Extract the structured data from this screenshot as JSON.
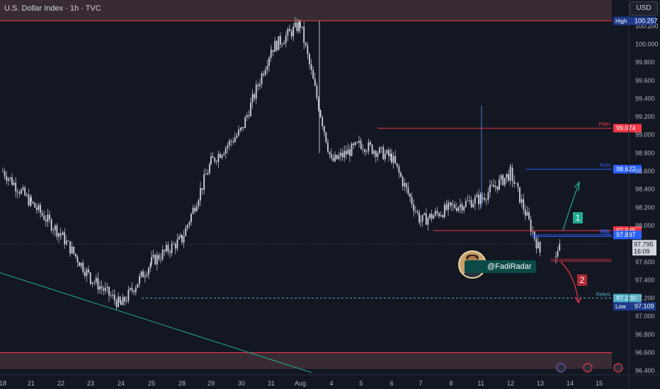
{
  "header": {
    "title": "U.S. Dollar Index · 1h · TVC",
    "currency_button": "USD"
  },
  "axis_labels": {
    "high_label": "High",
    "high_value": "100.257",
    "low_label": "Low",
    "low_value": "97.109",
    "last_price": "97.795",
    "countdown": "16:09"
  },
  "levels": [
    {
      "tag": "PWH",
      "value": 99.074,
      "label": "99.074",
      "color": "#f23645"
    },
    {
      "tag": "PDH",
      "value": 98.622,
      "label": "98.622",
      "color": "#2962ff"
    },
    {
      "tag": "",
      "value": 97.945,
      "label": "97.945",
      "color": "#f23645"
    },
    {
      "tag": "PWL",
      "value": 97.897,
      "label": "97.897",
      "color": "#2962ff"
    },
    {
      "tag": "PDL",
      "value": 97.88,
      "label": "",
      "color": "#2962ff"
    },
    {
      "tag": "Retest",
      "value": 97.2,
      "label": "97.200",
      "color": "#4fb0c6"
    }
  ],
  "annotations": {
    "handle": "@FadiRadar",
    "scenario_up": "1",
    "scenario_down": "2"
  },
  "colors": {
    "background": "#131722",
    "candles": "#d1d4dc",
    "up_arrow": "#22ab94",
    "down_arrow": "#f23645",
    "zone": "#5a3c44"
  },
  "chart_data": {
    "type": "candlestick",
    "title": "U.S. Dollar Index · 1h · TVC",
    "y_ticks": [
      "100.200",
      "100.000",
      "99.800",
      "99.600",
      "99.400",
      "99.200",
      "99.000",
      "98.800",
      "98.600",
      "98.400",
      "98.200",
      "98.000",
      "97.800",
      "97.600",
      "97.400",
      "97.200",
      "97.000",
      "96.800",
      "96.600",
      "96.400"
    ],
    "x_ticks": [
      "18",
      "21",
      "22",
      "23",
      "24",
      "25",
      "28",
      "29",
      "30",
      "31",
      "Aug",
      "4",
      "5",
      "6",
      "7",
      "8",
      "11",
      "12",
      "13",
      "14",
      "15"
    ],
    "ylim": [
      96.37,
      100.3
    ],
    "path": [
      {
        "d": "18",
        "v": 98.6
      },
      {
        "d": "21",
        "v": 98.25
      },
      {
        "d": "22",
        "v": 97.9
      },
      {
        "d": "23",
        "v": 97.42
      },
      {
        "d": "24",
        "v": 97.12
      },
      {
        "d": "25",
        "v": 97.6
      },
      {
        "d": "28",
        "v": 97.85
      },
      {
        "d": "29",
        "v": 98.7
      },
      {
        "d": "30",
        "v": 99.05
      },
      {
        "d": "31",
        "v": 99.95
      },
      {
        "d": "Aug",
        "v": 100.22
      },
      {
        "d": "4",
        "v": 98.7
      },
      {
        "d": "5",
        "v": 98.9
      },
      {
        "d": "6",
        "v": 98.75
      },
      {
        "d": "7",
        "v": 98.05
      },
      {
        "d": "8",
        "v": 98.2
      },
      {
        "d": "11",
        "v": 98.3
      },
      {
        "d": "12",
        "v": 98.58
      },
      {
        "d": "13",
        "v": 97.7
      }
    ],
    "last": 97.795,
    "high": 100.257,
    "low": 97.109
  }
}
